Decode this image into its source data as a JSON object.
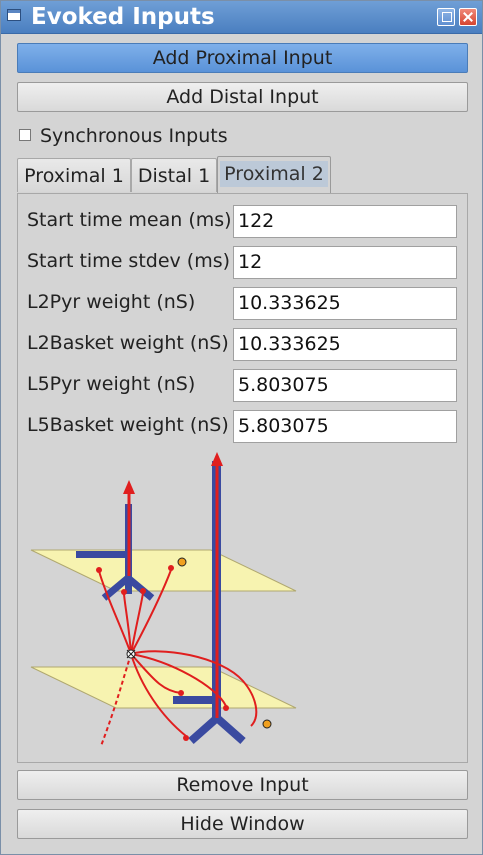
{
  "window": {
    "title": "Evoked Inputs"
  },
  "buttons": {
    "add_proximal": "Add Proximal Input",
    "add_distal": "Add Distal Input",
    "remove_input": "Remove Input",
    "hide_window": "Hide Window"
  },
  "synchronous": {
    "label": "Synchronous Inputs",
    "checked": false
  },
  "tabs": [
    {
      "label": "Proximal 1",
      "selected": false
    },
    {
      "label": "Distal 1",
      "selected": false
    },
    {
      "label": "Proximal 2",
      "selected": true
    }
  ],
  "fields": [
    {
      "label": "Start time mean (ms)",
      "value": "122"
    },
    {
      "label": "Start time stdev (ms)",
      "value": "12"
    },
    {
      "label": "L2Pyr weight (nS)",
      "value": "10.333625"
    },
    {
      "label": "L2Basket weight (nS)",
      "value": "10.333625"
    },
    {
      "label": "L5Pyr weight (nS)",
      "value": "5.803075"
    },
    {
      "label": "L5Basket weight (nS)",
      "value": "5.803075"
    }
  ],
  "colors": {
    "neuron": "#3a4aa0",
    "axon": "#e01e1e",
    "layer": "#f7f3b0",
    "basket": "#f0a020"
  }
}
